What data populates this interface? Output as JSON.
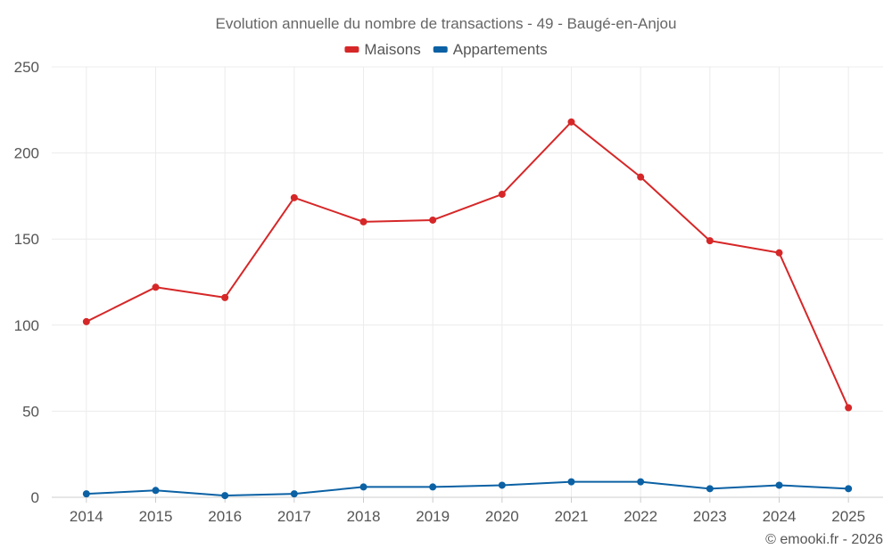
{
  "chart_data": {
    "type": "line",
    "title": "Evolution annuelle du nombre de transactions - 49 - Baugé-en-Anjou",
    "xlabel": "",
    "ylabel": "",
    "categories": [
      "2014",
      "2015",
      "2016",
      "2017",
      "2018",
      "2019",
      "2020",
      "2021",
      "2022",
      "2023",
      "2024",
      "2025"
    ],
    "ylim": [
      0,
      250
    ],
    "yticks": [
      0,
      50,
      100,
      150,
      200,
      250
    ],
    "grid": true,
    "legend_position": "top-center",
    "series": [
      {
        "name": "Maisons",
        "color": "#d62728",
        "values": [
          102,
          122,
          116,
          174,
          160,
          161,
          176,
          218,
          186,
          149,
          142,
          52
        ]
      },
      {
        "name": "Appartements",
        "color": "#0b61a4",
        "values": [
          2,
          4,
          1,
          2,
          6,
          6,
          7,
          9,
          9,
          5,
          7,
          5
        ]
      }
    ],
    "credit": "© emooki.fr - 2026"
  }
}
